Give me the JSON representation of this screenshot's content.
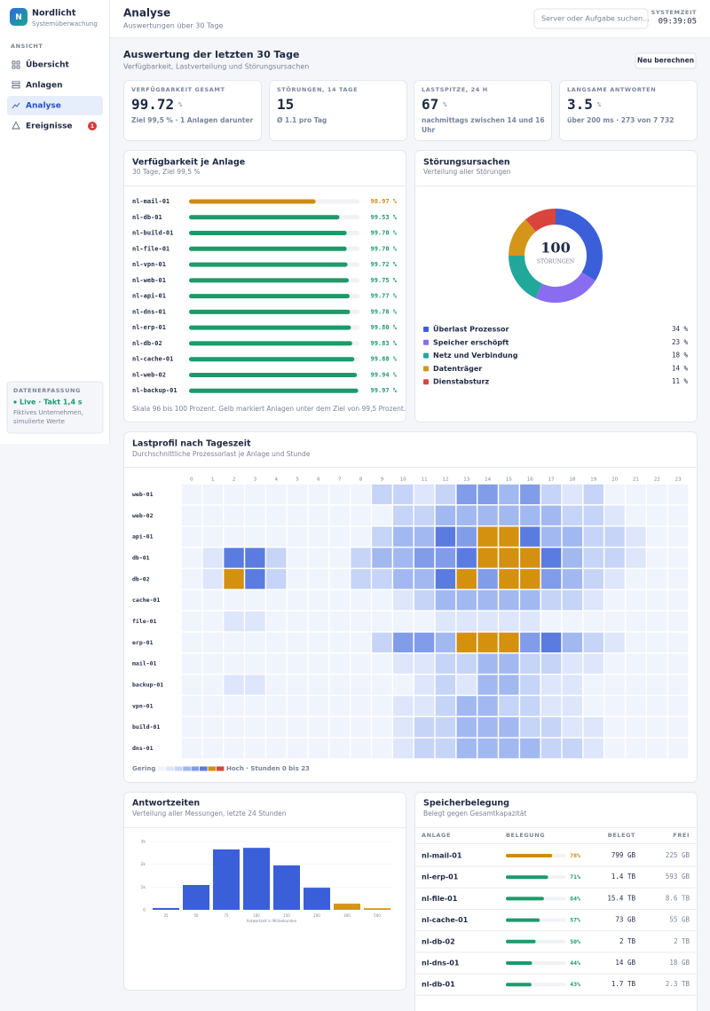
{
  "sidebar": {
    "logo": "N",
    "brand": "Nordlicht",
    "tagline": "Systemüberwachung",
    "section": "ANSICHT",
    "nav": [
      {
        "label": "Übersicht"
      },
      {
        "label": "Anlagen"
      },
      {
        "label": "Analyse",
        "active": true
      },
      {
        "label": "Ereignisse",
        "badge": "1"
      }
    ],
    "status": {
      "title": "DATENERFASSUNG",
      "live": "Live · Takt 1,4 s",
      "note": "Fiktives Unternehmen, simulierte Werte"
    }
  },
  "header": {
    "title": "Analyse",
    "subtitle": "Auswertungen über 30 Tage",
    "search_placeholder": "Server oder Aufgabe suchen...",
    "clock_label": "SYSTEMZEIT",
    "clock": "09:39:05"
  },
  "section": {
    "title": "Auswertung der letzten 30 Tage",
    "subtitle": "Verfügbarkeit, Lastverteilung und Störungsursachen",
    "button": "Neu berechnen"
  },
  "kpis": [
    {
      "label": "VERFÜGBARKEIT GESAMT",
      "value": "99.72",
      "unit": "%",
      "note": "Ziel 99,5 % · 1 Anlagen darunter"
    },
    {
      "label": "STÖRUNGEN, 14 TAGE",
      "value": "15",
      "note": "Ø 1.1 pro Tag"
    },
    {
      "label": "LASTSPITZE, 24 H",
      "value": "67",
      "unit": "%",
      "note": "nachmittags zwischen 14 und 16 Uhr"
    },
    {
      "label": "LANGSAME ANTWORTEN",
      "value": "3.5",
      "unit": "%",
      "note": "über 200 ms · 273 von 7 732"
    }
  ],
  "availability": {
    "type": "bar",
    "title": "Verfügbarkeit je Anlage",
    "subtitle": "30 Tage, Ziel 99,5 %",
    "categories": [
      "nl-mail-01",
      "nl-db-01",
      "nl-build-01",
      "nl-file-01",
      "nl-vpn-01",
      "nl-web-01",
      "nl-api-01",
      "nl-dns-01",
      "nl-erp-01",
      "nl-db-02",
      "nl-cache-01",
      "nl-web-02",
      "nl-backup-01"
    ],
    "values": [
      98.97,
      99.53,
      99.7,
      99.7,
      99.72,
      99.75,
      99.77,
      99.78,
      99.8,
      99.83,
      99.88,
      99.94,
      99.97
    ],
    "value_labels": [
      "98.97 %",
      "99.53 %",
      "99.70 %",
      "99.70 %",
      "99.72 %",
      "99.75 %",
      "99.77 %",
      "99.78 %",
      "99.80 %",
      "99.83 %",
      "99.88 %",
      "99.94 %",
      "99.97 %"
    ],
    "colors": [
      "#d08a12",
      "#1d9a6c",
      "#1d9a6c",
      "#1d9a6c",
      "#1d9a6c",
      "#1d9a6c",
      "#1d9a6c",
      "#1d9a6c",
      "#1d9a6c",
      "#1d9a6c",
      "#1d9a6c",
      "#1d9a6c",
      "#1d9a6c"
    ],
    "xlim": [
      96,
      100
    ],
    "note": "Skala 96 bis 100 Prozent. Gelb markiert Anlagen unter dem Ziel von 99,5 Prozent."
  },
  "causes": {
    "type": "donut",
    "title": "Störungsursachen",
    "subtitle": "Verteilung aller Störungen",
    "total": "100",
    "total_label": "STÖRUNGEN",
    "categories": [
      "Überlast Prozessor",
      "Speicher erschöpft",
      "Netz und Verbindung",
      "Datenträger",
      "Dienstabsturz"
    ],
    "values": [
      34,
      23,
      18,
      14,
      11
    ],
    "value_labels": [
      "34 %",
      "23 %",
      "18 %",
      "14 %",
      "11 %"
    ],
    "colors": [
      "#3a5fd9",
      "#8a6cf0",
      "#22a89a",
      "#d4961a",
      "#d9443c"
    ]
  },
  "heatmap": {
    "type": "heatmap",
    "title": "Lastprofil nach Tageszeit",
    "subtitle": "Durchschnittliche Prozessorlast je Anlage und Stunde",
    "x": [
      0,
      1,
      2,
      3,
      4,
      5,
      6,
      7,
      8,
      9,
      10,
      11,
      12,
      13,
      14,
      15,
      16,
      17,
      18,
      19,
      20,
      21,
      22,
      23
    ],
    "categories": [
      "web-01",
      "web-02",
      "api-01",
      "db-01",
      "db-02",
      "cache-01",
      "file-01",
      "erp-01",
      "mail-01",
      "backup-01",
      "vpn-01",
      "build-01",
      "dns-01"
    ],
    "values": [
      [
        10,
        10,
        10,
        10,
        10,
        10,
        10,
        10,
        12,
        35,
        30,
        28,
        38,
        50,
        52,
        45,
        55,
        30,
        28,
        35,
        12,
        12,
        12,
        12
      ],
      [
        10,
        10,
        10,
        10,
        10,
        10,
        10,
        10,
        10,
        10,
        30,
        32,
        45,
        48,
        45,
        47,
        46,
        45,
        32,
        30,
        20,
        10,
        10,
        10
      ],
      [
        12,
        12,
        12,
        12,
        12,
        12,
        12,
        12,
        12,
        30,
        45,
        48,
        58,
        55,
        66,
        66,
        58,
        48,
        40,
        35,
        32,
        20,
        12,
        12
      ],
      [
        12,
        25,
        58,
        58,
        30,
        12,
        12,
        12,
        30,
        40,
        46,
        50,
        55,
        56,
        66,
        67,
        66,
        58,
        45,
        38,
        30,
        20,
        12,
        12
      ],
      [
        12,
        25,
        66,
        58,
        30,
        12,
        12,
        12,
        30,
        38,
        45,
        48,
        60,
        66,
        52,
        66,
        66,
        50,
        42,
        35,
        28,
        12,
        12,
        12
      ],
      [
        12,
        12,
        12,
        12,
        12,
        12,
        12,
        12,
        12,
        12,
        28,
        30,
        40,
        45,
        42,
        46,
        44,
        38,
        30,
        28,
        12,
        12,
        12,
        12
      ],
      [
        12,
        12,
        25,
        25,
        12,
        12,
        12,
        12,
        12,
        12,
        12,
        12,
        18,
        28,
        28,
        25,
        16,
        12,
        12,
        12,
        12,
        12,
        12,
        12
      ],
      [
        12,
        12,
        12,
        12,
        12,
        12,
        12,
        12,
        12,
        35,
        50,
        52,
        48,
        65,
        66,
        65,
        55,
        60,
        45,
        35,
        28,
        12,
        12,
        12
      ],
      [
        12,
        12,
        12,
        12,
        12,
        12,
        12,
        12,
        12,
        12,
        25,
        28,
        30,
        35,
        48,
        45,
        38,
        30,
        28,
        20,
        12,
        12,
        12,
        12
      ],
      [
        12,
        12,
        25,
        25,
        12,
        12,
        12,
        12,
        12,
        12,
        12,
        25,
        38,
        16,
        45,
        40,
        35,
        28,
        25,
        12,
        12,
        12,
        12,
        12
      ],
      [
        12,
        12,
        12,
        12,
        12,
        12,
        12,
        12,
        12,
        12,
        25,
        28,
        38,
        40,
        40,
        32,
        38,
        28,
        25,
        12,
        12,
        12,
        12,
        12
      ],
      [
        12,
        12,
        12,
        12,
        12,
        12,
        12,
        12,
        12,
        12,
        25,
        30,
        35,
        45,
        42,
        40,
        38,
        35,
        28,
        25,
        12,
        12,
        12,
        12
      ],
      [
        12,
        12,
        12,
        12,
        12,
        12,
        12,
        12,
        12,
        12,
        28,
        30,
        38,
        48,
        40,
        45,
        42,
        38,
        30,
        28,
        12,
        12,
        12,
        12
      ]
    ],
    "color_breaks": [
      15,
      30,
      40,
      50,
      56,
      62,
      75
    ],
    "colors": [
      "#f0f4fd",
      "#dde6fb",
      "#c5d4f7",
      "#a2b8f1",
      "#819ce9",
      "#5a7be0",
      "#d4900f",
      "#d9443c"
    ],
    "legend_low": "Gering",
    "legend_high": "Hoch · Stunden 0 bis 23"
  },
  "latency": {
    "type": "bar",
    "title": "Antwortzeiten",
    "subtitle": "Verteilung aller Messungen, letzte 24 Stunden",
    "categories": [
      "25",
      "50",
      "75",
      "100",
      "150",
      "200",
      "300",
      "500"
    ],
    "values": [
      80,
      1090,
      2650,
      2720,
      1950,
      970,
      270,
      70
    ],
    "colors": [
      "#3a5fd9",
      "#3a5fd9",
      "#3a5fd9",
      "#3a5fd9",
      "#3a5fd9",
      "#3a5fd9",
      "#d4961a",
      "#d4961a"
    ],
    "ylim": [
      0,
      3000
    ],
    "yticks": [
      0,
      {
        "value": 1000,
        "label": "1k"
      },
      {
        "value": 2000,
        "label": "2k"
      },
      {
        "value": 3000,
        "label": "3k"
      }
    ],
    "xlabel": "Antwortzeit in Millisekunden"
  },
  "storage": {
    "title": "Speicherbelegung",
    "subtitle": "Belegt gegen Gesamtkapazität",
    "columns": [
      "ANLAGE",
      "BELEGUNG",
      "BELEGT",
      "FREI"
    ],
    "rows": [
      {
        "name": "nl-mail-01",
        "value": 78,
        "value_label": "78%",
        "color": "#d08a12",
        "used": "799 GB",
        "free": "225 GB"
      },
      {
        "name": "nl-erp-01",
        "value": 71,
        "value_label": "71%",
        "color": "#1d9a6c",
        "used": "1.4 TB",
        "free": "593 GB"
      },
      {
        "name": "nl-file-01",
        "value": 64,
        "value_label": "64%",
        "color": "#1d9a6c",
        "used": "15.4 TB",
        "free": "8.6 TB"
      },
      {
        "name": "nl-cache-01",
        "value": 57,
        "value_label": "57%",
        "color": "#1d9a6c",
        "used": "73 GB",
        "free": "55 GB"
      },
      {
        "name": "nl-db-02",
        "value": 50,
        "value_label": "50%",
        "color": "#1d9a6c",
        "used": "2 TB",
        "free": "2 TB"
      },
      {
        "name": "nl-dns-01",
        "value": 44,
        "value_label": "44%",
        "color": "#1d9a6c",
        "used": "14 GB",
        "free": "18 GB"
      },
      {
        "name": "nl-db-01",
        "value": 43,
        "value_label": "43%",
        "color": "#1d9a6c",
        "used": "1.7 TB",
        "free": "2.3 TB"
      }
    ]
  }
}
